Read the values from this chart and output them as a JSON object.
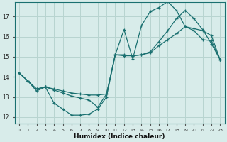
{
  "xlabel": "Humidex (Indice chaleur)",
  "bg_color": "#d8ecea",
  "line_color": "#1a7070",
  "grid_color": "#b8d4d0",
  "xlim": [
    -0.5,
    23.5
  ],
  "ylim": [
    11.7,
    17.7
  ],
  "yticks": [
    12,
    13,
    14,
    15,
    16,
    17
  ],
  "xticks": [
    0,
    1,
    2,
    3,
    4,
    5,
    6,
    7,
    8,
    9,
    10,
    11,
    12,
    13,
    14,
    15,
    16,
    17,
    18,
    19,
    20,
    21,
    22,
    23
  ],
  "curve1_x": [
    0,
    1,
    2,
    3,
    4,
    5,
    6,
    7,
    8,
    9,
    10,
    11,
    12,
    13,
    14,
    15,
    16,
    17,
    18,
    19,
    20,
    21,
    22,
    23
  ],
  "curve1_y": [
    14.2,
    13.8,
    13.3,
    13.5,
    12.7,
    12.4,
    12.1,
    12.1,
    12.15,
    12.4,
    13.0,
    15.1,
    16.35,
    14.9,
    16.55,
    17.25,
    17.45,
    17.75,
    17.3,
    16.5,
    16.3,
    15.85,
    15.8,
    14.85
  ],
  "curve2_x": [
    0,
    1,
    2,
    3,
    4,
    5,
    6,
    7,
    8,
    9,
    10,
    11,
    12,
    13,
    14,
    15,
    16,
    17,
    18,
    19,
    20,
    21,
    22,
    23
  ],
  "curve2_y": [
    14.2,
    13.8,
    13.4,
    13.5,
    13.4,
    13.3,
    13.2,
    13.15,
    13.1,
    13.1,
    13.15,
    15.1,
    15.1,
    15.05,
    15.1,
    15.2,
    15.55,
    15.85,
    16.15,
    16.5,
    16.4,
    16.3,
    16.05,
    14.85
  ],
  "curve3_x": [
    0,
    1,
    2,
    3,
    4,
    5,
    6,
    7,
    8,
    9,
    10,
    11,
    12,
    13,
    14,
    15,
    16,
    17,
    18,
    19,
    20,
    21,
    22,
    23
  ],
  "curve3_y": [
    14.2,
    13.8,
    13.4,
    13.5,
    13.35,
    13.2,
    13.05,
    12.95,
    12.85,
    12.5,
    13.15,
    15.1,
    15.05,
    15.05,
    15.1,
    15.25,
    15.75,
    16.3,
    16.9,
    17.3,
    16.9,
    16.35,
    15.65,
    14.85
  ]
}
